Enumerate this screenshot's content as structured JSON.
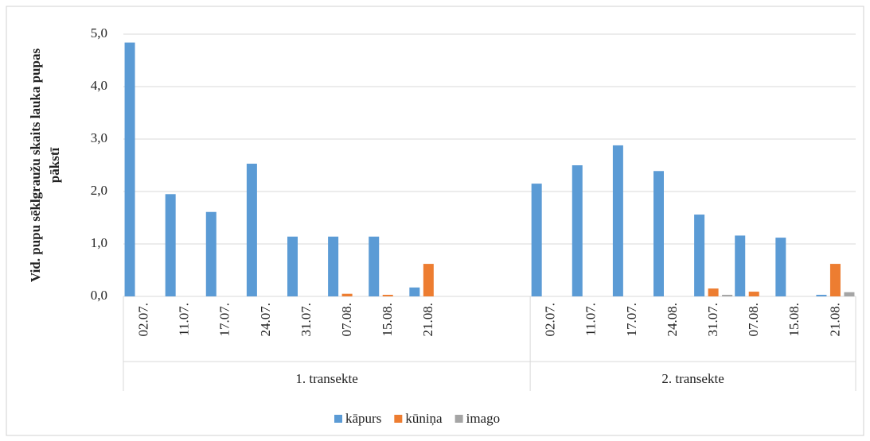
{
  "chart_data": {
    "type": "bar",
    "y_label": [
      "Vid. pupu sēklgraužu skaits lauka pupas",
      "pākstī"
    ],
    "groups": [
      {
        "name": "1. transekte",
        "categories": [
          "02.07.",
          "11.07.",
          "17.07.",
          "24.07.",
          "31.07.",
          "07.08.",
          "15.08.",
          "21.08.",
          null,
          null
        ]
      },
      {
        "name": "2. transekte",
        "categories": [
          "02.07.",
          "11.07.",
          "17.07.",
          "24.08.",
          "31.07.",
          "07.08.",
          "15.08.",
          "21.08."
        ]
      }
    ],
    "series": [
      {
        "name": "kāpurs",
        "color": "#5b9bd5",
        "values": [
          4.84,
          1.95,
          1.61,
          2.53,
          1.14,
          1.14,
          1.14,
          0.17,
          null,
          null,
          2.15,
          2.5,
          2.88,
          2.39,
          1.56,
          1.16,
          1.12,
          0.03
        ]
      },
      {
        "name": "kūniņa",
        "color": "#ed7d31",
        "values": [
          0,
          0,
          0,
          0,
          0,
          0.05,
          0.03,
          0.62,
          null,
          null,
          0,
          0,
          0,
          0,
          0.15,
          0.09,
          0,
          0.62
        ]
      },
      {
        "name": "imago",
        "color": "#a5a5a5",
        "values": [
          0,
          0,
          0,
          0,
          0,
          0,
          0,
          0,
          null,
          null,
          0,
          0,
          0,
          0,
          0.03,
          0,
          0,
          0.08
        ]
      }
    ],
    "ylim": [
      0,
      5
    ],
    "yticks": [
      {
        "value": 0,
        "label": "0,0"
      },
      {
        "value": 1,
        "label": "1,0"
      },
      {
        "value": 2,
        "label": "2,0"
      },
      {
        "value": 3,
        "label": "3,0"
      },
      {
        "value": 4,
        "label": "4,0"
      },
      {
        "value": 5,
        "label": "5,0"
      }
    ],
    "grid": true,
    "legend": "bottom"
  }
}
